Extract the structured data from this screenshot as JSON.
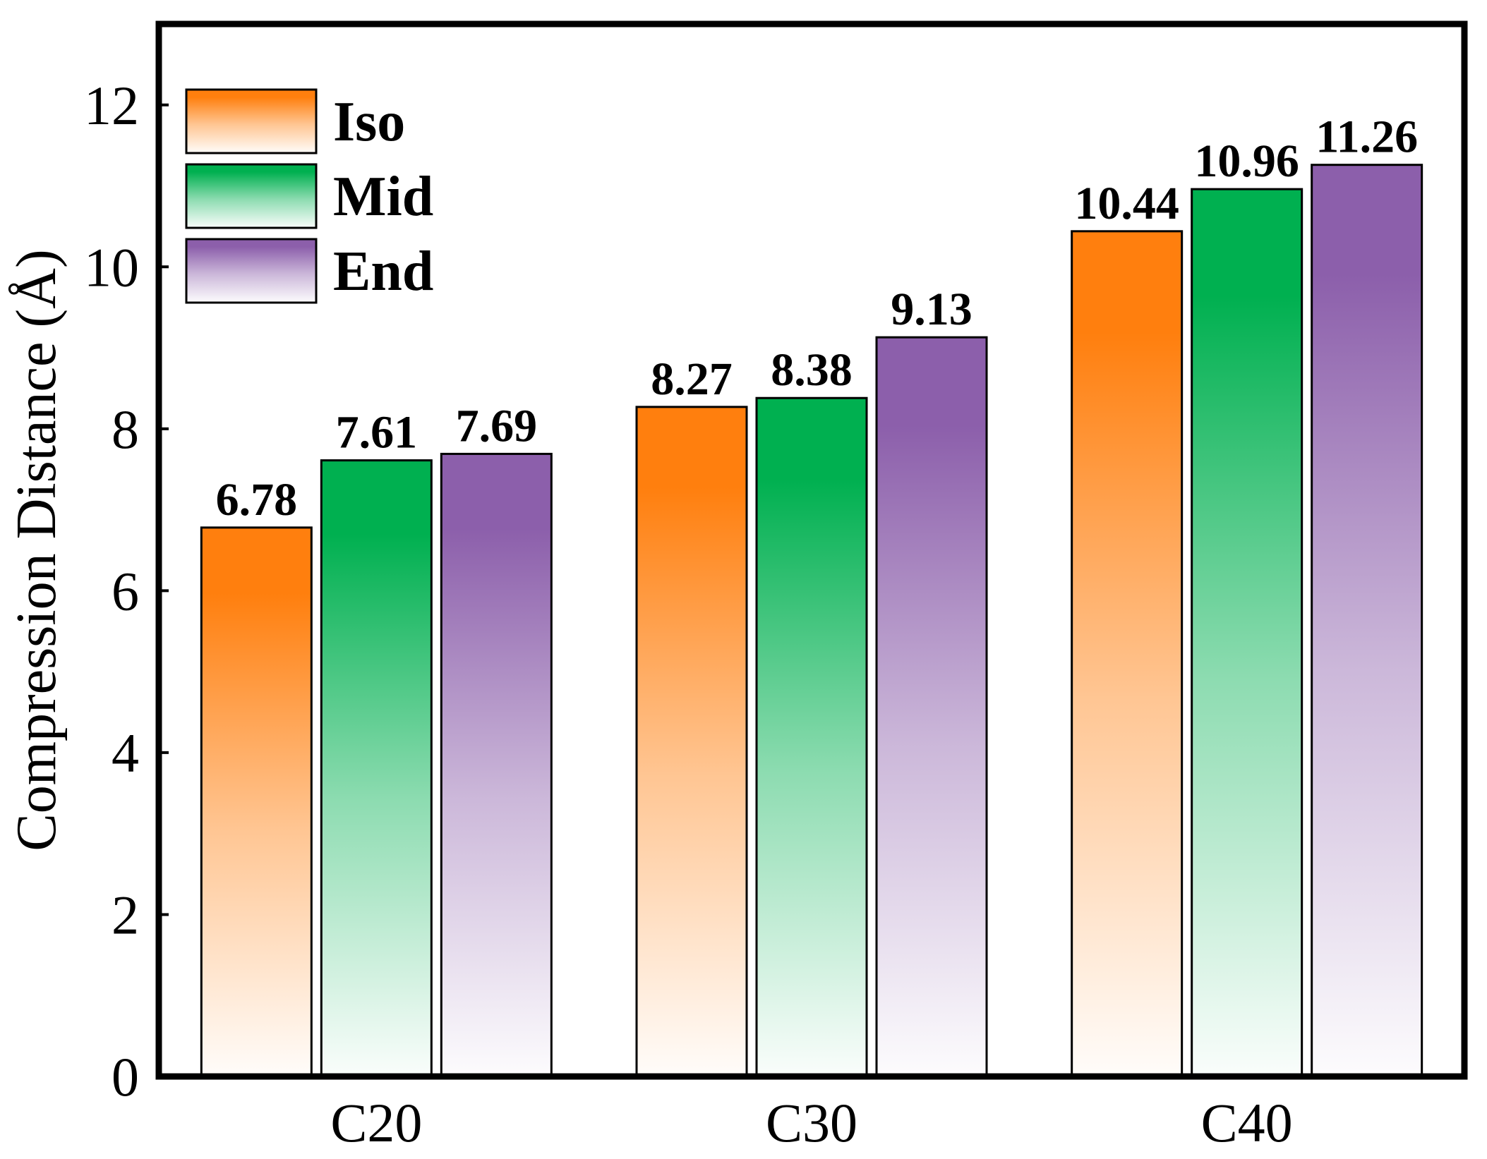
{
  "chart_data": {
    "type": "bar",
    "title": "",
    "xlabel": "",
    "ylabel": "Compression Distance (Å)",
    "ylim": [
      0,
      13
    ],
    "yticks": [
      0,
      2,
      4,
      6,
      8,
      10,
      12
    ],
    "categories": [
      "C20",
      "C30",
      "C40"
    ],
    "series": [
      {
        "name": "Iso",
        "values": [
          6.78,
          8.27,
          10.44
        ],
        "color": "#ff7f0e",
        "value_labels": [
          "6.78",
          "8.27",
          "10.44"
        ]
      },
      {
        "name": "Mid",
        "values": [
          7.61,
          8.38,
          10.96
        ],
        "color": "#00b050",
        "value_labels": [
          "7.61",
          "8.38",
          "10.96"
        ]
      },
      {
        "name": "End",
        "values": [
          7.69,
          9.13,
          11.26
        ],
        "color": "#8c5fab",
        "value_labels": [
          "7.69",
          "9.13",
          "11.26"
        ]
      }
    ],
    "legend_position": "top-left"
  }
}
